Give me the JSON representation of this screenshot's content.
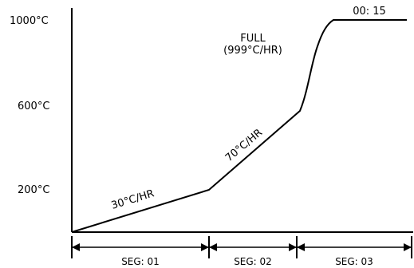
{
  "diagram": {
    "y_axis_labels": [
      "1000°C",
      "600°C",
      "200°C"
    ],
    "annotations": {
      "rate_1": "30°C/HR",
      "rate_2": "70°C/HR",
      "full_1": "FULL",
      "full_2": "(999°C/HR)",
      "hold_time": "00: 15"
    },
    "segments": [
      "SEG: 01",
      "SEG: 02",
      "SEG: 03"
    ]
  },
  "chart_data": {
    "type": "line",
    "title": "",
    "xlabel": "",
    "ylabel": "",
    "y_unit": "°C",
    "y_ticks": [
      200,
      600,
      1000
    ],
    "ylim": [
      0,
      1000
    ],
    "x": [
      0,
      1,
      2,
      3,
      4
    ],
    "y": [
      0,
      200,
      560,
      1000,
      1000
    ],
    "points_note_segments": [
      "SEG: 01",
      "SEG: 02",
      "SEG: 03"
    ]
  },
  "colors": {
    "stroke": "#000000",
    "background": "#ffffff"
  }
}
